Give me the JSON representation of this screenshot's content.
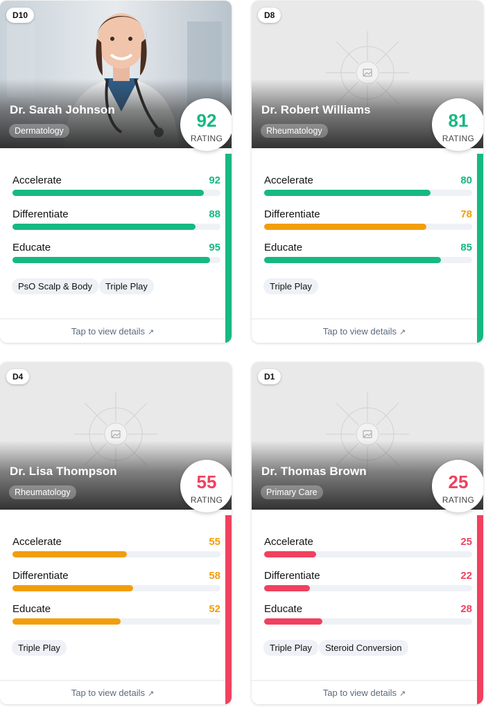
{
  "cards": [
    {
      "id": "D10",
      "name": "Dr. Sarah Johnson",
      "specialty": "Dermatology",
      "rating": "92",
      "rating_label": "RATING",
      "has_photo": true,
      "accent_color": "#16b981",
      "metrics": [
        {
          "label": "Accelerate",
          "value": "92",
          "fill": 0.92,
          "color": "#16b981"
        },
        {
          "label": "Differentiate",
          "value": "88",
          "fill": 0.88,
          "color": "#16b981"
        },
        {
          "label": "Educate",
          "value": "95",
          "fill": 0.95,
          "color": "#16b981"
        }
      ],
      "tags": [
        "PsO Scalp & Body",
        "Triple Play"
      ],
      "footer": "Tap to view details"
    },
    {
      "id": "D8",
      "name": "Dr. Robert Williams",
      "specialty": "Rheumatology",
      "rating": "81",
      "rating_label": "RATING",
      "has_photo": false,
      "accent_color": "#16b981",
      "metrics": [
        {
          "label": "Accelerate",
          "value": "80",
          "fill": 0.8,
          "color": "#16b981"
        },
        {
          "label": "Differentiate",
          "value": "78",
          "fill": 0.78,
          "color": "#f29e0c"
        },
        {
          "label": "Educate",
          "value": "85",
          "fill": 0.85,
          "color": "#16b981"
        }
      ],
      "tags": [
        "Triple Play"
      ],
      "footer": "Tap to view details"
    },
    {
      "id": "D4",
      "name": "Dr. Lisa Thompson",
      "specialty": "Rheumatology",
      "rating": "55",
      "rating_label": "RATING",
      "has_photo": false,
      "accent_color": "#f0415f",
      "metrics": [
        {
          "label": "Accelerate",
          "value": "55",
          "fill": 0.55,
          "color": "#f29e0c"
        },
        {
          "label": "Differentiate",
          "value": "58",
          "fill": 0.58,
          "color": "#f29e0c"
        },
        {
          "label": "Educate",
          "value": "52",
          "fill": 0.52,
          "color": "#f29e0c"
        }
      ],
      "tags": [
        "Triple Play"
      ],
      "footer": "Tap to view details"
    },
    {
      "id": "D1",
      "name": "Dr. Thomas Brown",
      "specialty": "Primary Care",
      "rating": "25",
      "rating_label": "RATING",
      "has_photo": false,
      "accent_color": "#f0415f",
      "metrics": [
        {
          "label": "Accelerate",
          "value": "25",
          "fill": 0.25,
          "color": "#f0415f"
        },
        {
          "label": "Differentiate",
          "value": "22",
          "fill": 0.22,
          "color": "#f0415f"
        },
        {
          "label": "Educate",
          "value": "28",
          "fill": 0.28,
          "color": "#f0415f"
        }
      ],
      "tags": [
        "Triple Play",
        "Steroid Conversion"
      ],
      "footer": "Tap to view details"
    }
  ]
}
